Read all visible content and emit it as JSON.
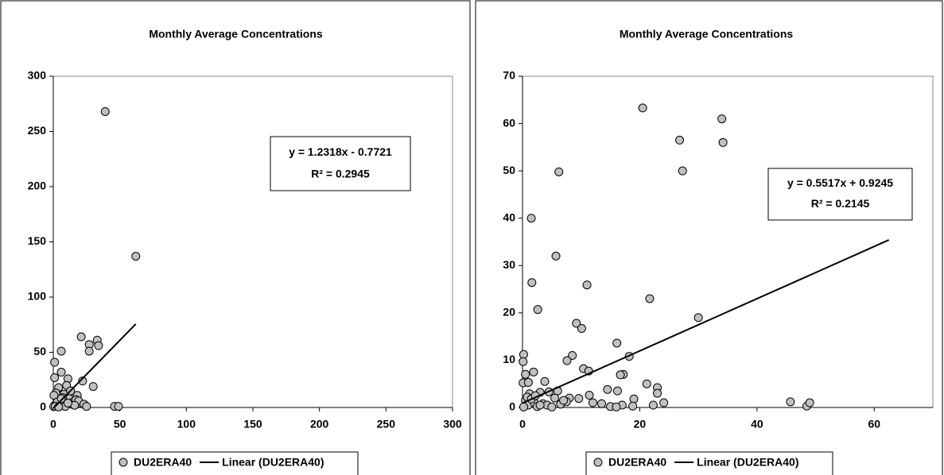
{
  "chart_data": [
    {
      "type": "scatter",
      "title": "Monthly Average Concentrations",
      "series": [
        {
          "name": "DU2ERA40",
          "color": "#c0c0c0",
          "x": [
            39,
            62,
            21,
            33,
            34,
            27,
            27,
            6,
            30,
            22,
            6,
            1,
            1,
            11,
            46,
            49,
            3,
            8,
            12,
            15,
            18,
            20,
            24,
            4,
            2,
            10,
            14,
            17,
            5,
            1,
            0.5,
            2,
            7,
            9,
            13,
            19,
            16,
            3,
            0.3,
            6,
            11,
            23,
            25,
            1.5,
            4
          ],
          "values": [
            268,
            137,
            64,
            61,
            56,
            57,
            51,
            51,
            19,
            24,
            32,
            41,
            27,
            26,
            1,
            1,
            10,
            12,
            8,
            5,
            11,
            4,
            2,
            18,
            13,
            20,
            3,
            7,
            6,
            2,
            11,
            3,
            9,
            1,
            15,
            6,
            2,
            5,
            1,
            8,
            4,
            3,
            1,
            1,
            0.5
          ]
        }
      ],
      "trendline": {
        "name": "Linear (DU2ERA40)",
        "slope": 1.2318,
        "intercept": -0.7721,
        "x_range": [
          0,
          62
        ],
        "equation": "y = 1.2318x - 0.7721",
        "r2_label": "R² = 0.2945"
      },
      "xlim": [
        0,
        300
      ],
      "ylim": [
        0,
        300
      ],
      "xticks": [
        0,
        50,
        100,
        150,
        200,
        250,
        300
      ],
      "yticks": [
        0,
        50,
        100,
        150,
        200,
        250,
        300
      ],
      "legend": "bottom"
    },
    {
      "type": "scatter",
      "title": "Monthly Average Concentrations",
      "series": [
        {
          "name": "DU2ERA40",
          "color": "#c0c0c0",
          "x": [
            20.5,
            34,
            34.2,
            26.8,
            27.3,
            6.2,
            1.5,
            5.7,
            1.6,
            11,
            2.6,
            21.7,
            30,
            9.2,
            10.1,
            16.1,
            8.5,
            18.2,
            0.2,
            0.1,
            7.6,
            10.4,
            11.3,
            17.2,
            16.7,
            1.9,
            0.5,
            21.2,
            23,
            23,
            14.5,
            16.2,
            0.1,
            1,
            3.8,
            4.5,
            1.2,
            3,
            6,
            8,
            9.6,
            11.4,
            12,
            19,
            18.8,
            17,
            22.3,
            24.1,
            13.5,
            15,
            16,
            45.7,
            48.5,
            49,
            0.5,
            1,
            2,
            2.5,
            3.5,
            4.2,
            5,
            6.5,
            7.5,
            0.2,
            0.8,
            1.5,
            2.2,
            3,
            5.5,
            7
          ],
          "values": [
            63.3,
            61,
            56,
            56.5,
            50,
            49.8,
            40,
            32,
            26.4,
            25.9,
            20.7,
            23,
            19,
            17.8,
            16.7,
            13.6,
            11,
            10.8,
            11.2,
            9.7,
            9.9,
            8.2,
            7.7,
            7,
            6.9,
            7.5,
            7,
            5,
            4.2,
            3,
            3.8,
            3.5,
            5.2,
            5.3,
            5.5,
            3.3,
            2.9,
            3.2,
            3.5,
            2,
            1.9,
            2.6,
            1,
            1.8,
            0.3,
            0.5,
            0.5,
            1,
            0.8,
            0.2,
            0.1,
            1.2,
            0.3,
            1,
            1.5,
            0.5,
            1,
            0.2,
            0.8,
            0.5,
            0.1,
            0.7,
            1.2,
            0.1,
            2.2,
            1.8,
            2.5,
            0.5,
            2,
            1.5
          ]
        }
      ],
      "trendline": {
        "name": "Linear (DU2ERA40)",
        "slope": 0.5517,
        "intercept": 0.9245,
        "x_range": [
          0,
          62.5
        ],
        "equation": "y = 0.5517x + 0.9245",
        "r2_label": "R² = 0.2145"
      },
      "xlim": [
        0,
        70
      ],
      "ylim": [
        0,
        70
      ],
      "xticks": [
        0,
        20,
        40,
        60
      ],
      "yticks": [
        0,
        10,
        20,
        30,
        40,
        50,
        60,
        70
      ],
      "legend": "bottom"
    }
  ]
}
